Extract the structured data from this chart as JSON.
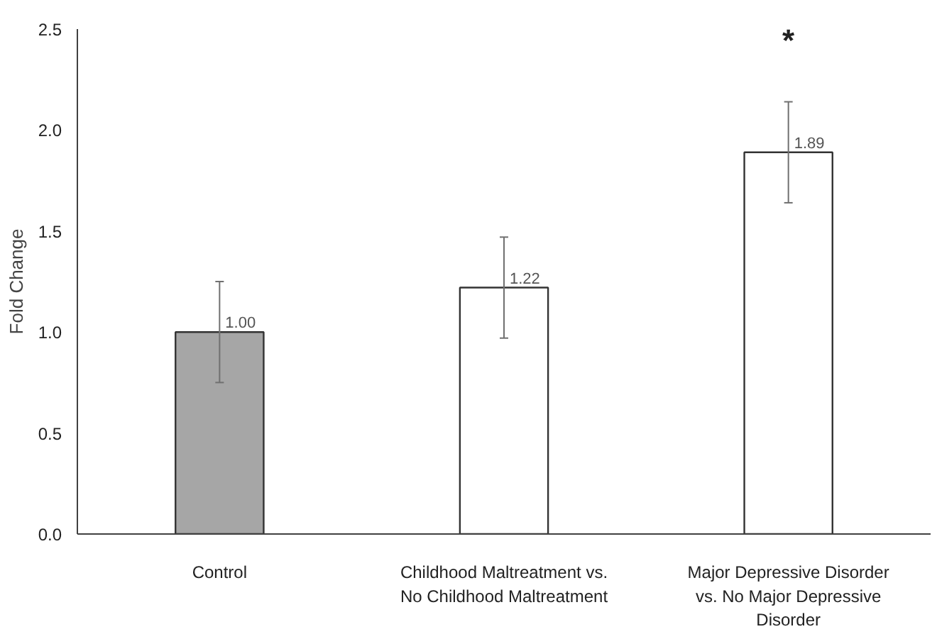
{
  "chart_data": {
    "type": "bar",
    "ylabel": "Fold Change",
    "categories": [
      "Control",
      "Childhood Maltreatment vs. No Childhood Maltreatment",
      "Major Depressive Disorder vs. No Major Depressive Disorder"
    ],
    "values": [
      1.0,
      1.22,
      1.89
    ],
    "colors": [
      "#a6a6a6",
      "#ffffff",
      "#ffffff"
    ],
    "errors": [
      0.25,
      0.25,
      0.25
    ],
    "value_labels": [
      "1.00",
      "1.22",
      "1.89"
    ],
    "ylim": [
      0,
      2.5
    ],
    "yticks": [
      {
        "value": 0,
        "label": "0.0"
      },
      {
        "value": 0.5,
        "label": "0.5"
      },
      {
        "value": 1,
        "label": "1.0"
      },
      {
        "value": 1.5,
        "label": "1.5"
      },
      {
        "value": 2,
        "label": "2.0"
      },
      {
        "value": 2.5,
        "label": "2.5"
      }
    ],
    "annotations": [
      "*"
    ],
    "grid": false
  }
}
